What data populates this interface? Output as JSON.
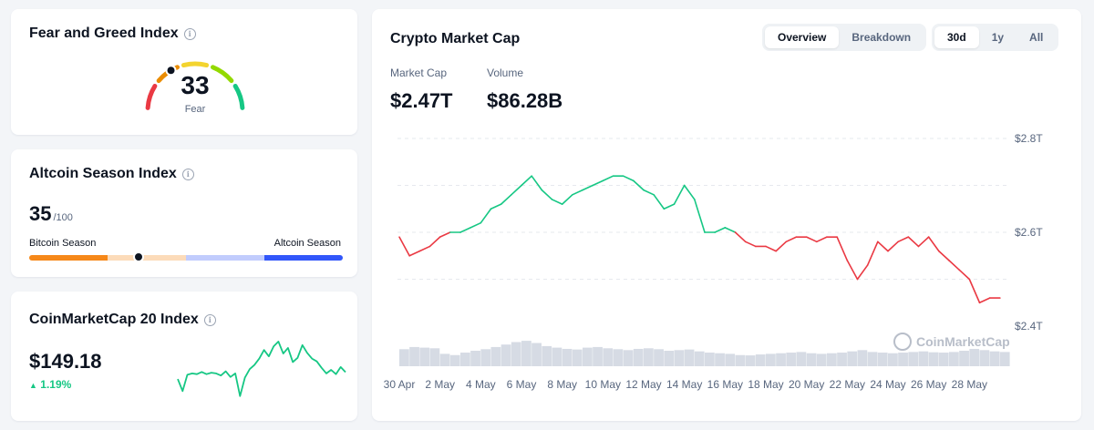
{
  "fear_greed": {
    "title": "Fear and Greed Index",
    "value": 33,
    "label": "Fear",
    "scale": [
      0,
      100
    ],
    "colors": [
      "#ea3943",
      "#ea8c00",
      "#f3d42f",
      "#93d900",
      "#16c784"
    ]
  },
  "altcoin_season": {
    "title": "Altcoin Season Index",
    "value": 35,
    "max_label": "/100",
    "left_label": "Bitcoin Season",
    "right_label": "Altcoin Season",
    "colors": [
      "#f68819",
      "#fcdbb9",
      "#c1ccfd",
      "#3156fa"
    ]
  },
  "cmc20": {
    "title": "CoinMarketCap 20 Index",
    "price": "$149.18",
    "change": "1.19%",
    "change_direction": "up",
    "color": "#16c784"
  },
  "market": {
    "title": "Crypto Market Cap",
    "tabs": [
      {
        "label": "Overview",
        "active": true
      },
      {
        "label": "Breakdown",
        "active": false
      }
    ],
    "ranges": [
      {
        "label": "30d",
        "active": true
      },
      {
        "label": "1y",
        "active": false
      },
      {
        "label": "All",
        "active": false
      }
    ],
    "market_cap_label": "Market Cap",
    "market_cap_value": "$2.47T",
    "volume_label": "Volume",
    "volume_value": "$86.28B",
    "watermark": "CoinMarketCap"
  },
  "chart_data": [
    {
      "type": "line",
      "title": "Crypto Market Cap",
      "x_labels": [
        "30 Apr",
        "2 May",
        "4 May",
        "6 May",
        "8 May",
        "10 May",
        "12 May",
        "14 May",
        "16 May",
        "18 May",
        "20 May",
        "22 May",
        "24 May",
        "26 May",
        "28 May"
      ],
      "x_range": [
        0,
        30
      ],
      "y_unit": "T",
      "y_ticks": [
        "$2.8T",
        "$2.6T",
        "$2.4T"
      ],
      "ylim": [
        2.4,
        2.8
      ],
      "baseline": 2.6,
      "color_above": "#16c784",
      "color_below": "#ea3943",
      "series": [
        {
          "x": [
            0,
            0.5,
            1,
            1.5,
            2,
            2.5,
            3,
            3.5,
            4,
            4.5,
            5,
            5.5,
            6,
            6.5,
            7,
            7.5,
            8,
            8.5,
            9,
            9.5,
            10,
            10.5,
            11,
            11.5,
            12,
            12.5,
            13,
            13.5,
            14,
            14.5,
            15,
            15.5,
            16,
            16.5,
            17,
            17.5,
            18,
            18.5,
            19,
            19.5,
            20,
            20.5,
            21,
            21.5,
            22,
            22.5,
            23,
            23.5,
            24,
            24.5,
            25,
            25.5,
            26,
            26.5,
            27,
            27.5,
            28,
            28.5,
            29,
            29.5
          ],
          "values": [
            2.59,
            2.55,
            2.56,
            2.57,
            2.59,
            2.6,
            2.6,
            2.61,
            2.62,
            2.65,
            2.66,
            2.68,
            2.7,
            2.72,
            2.69,
            2.67,
            2.66,
            2.68,
            2.69,
            2.7,
            2.71,
            2.72,
            2.72,
            2.71,
            2.69,
            2.68,
            2.65,
            2.66,
            2.7,
            2.67,
            2.6,
            2.6,
            2.61,
            2.6,
            2.58,
            2.57,
            2.57,
            2.56,
            2.58,
            2.59,
            2.59,
            2.58,
            2.59,
            2.59,
            2.54,
            2.5,
            2.53,
            2.58,
            2.56,
            2.58,
            2.59,
            2.57,
            2.59,
            2.56,
            2.54,
            2.52,
            2.5,
            2.45,
            2.46,
            2.46
          ]
        }
      ],
      "volume": [
        0.55,
        0.62,
        0.6,
        0.58,
        0.4,
        0.36,
        0.44,
        0.5,
        0.55,
        0.62,
        0.7,
        0.78,
        0.82,
        0.75,
        0.65,
        0.6,
        0.56,
        0.54,
        0.6,
        0.62,
        0.58,
        0.55,
        0.52,
        0.56,
        0.58,
        0.55,
        0.5,
        0.52,
        0.54,
        0.48,
        0.44,
        0.42,
        0.4,
        0.36,
        0.35,
        0.38,
        0.4,
        0.42,
        0.44,
        0.46,
        0.42,
        0.4,
        0.42,
        0.44,
        0.48,
        0.52,
        0.46,
        0.44,
        0.42,
        0.44,
        0.46,
        0.48,
        0.45,
        0.44,
        0.46,
        0.5,
        0.56,
        0.52,
        0.48,
        0.46
      ]
    },
    {
      "type": "line",
      "title": "CoinMarketCap 20 Index",
      "values": [
        148.2,
        146.5,
        148.8,
        149.0,
        148.9,
        149.2,
        148.9,
        149.1,
        149.0,
        148.7,
        149.3,
        148.5,
        149.0,
        145.8,
        148.4,
        149.6,
        150.2,
        151.1,
        152.3,
        151.4,
        152.8,
        153.5,
        151.8,
        152.6,
        150.6,
        151.2,
        153.0,
        151.9,
        151.1,
        150.7,
        149.8,
        149.0,
        149.5,
        148.9,
        149.9,
        149.18
      ],
      "ylim": [
        145,
        154
      ],
      "color": "#16c784"
    }
  ]
}
